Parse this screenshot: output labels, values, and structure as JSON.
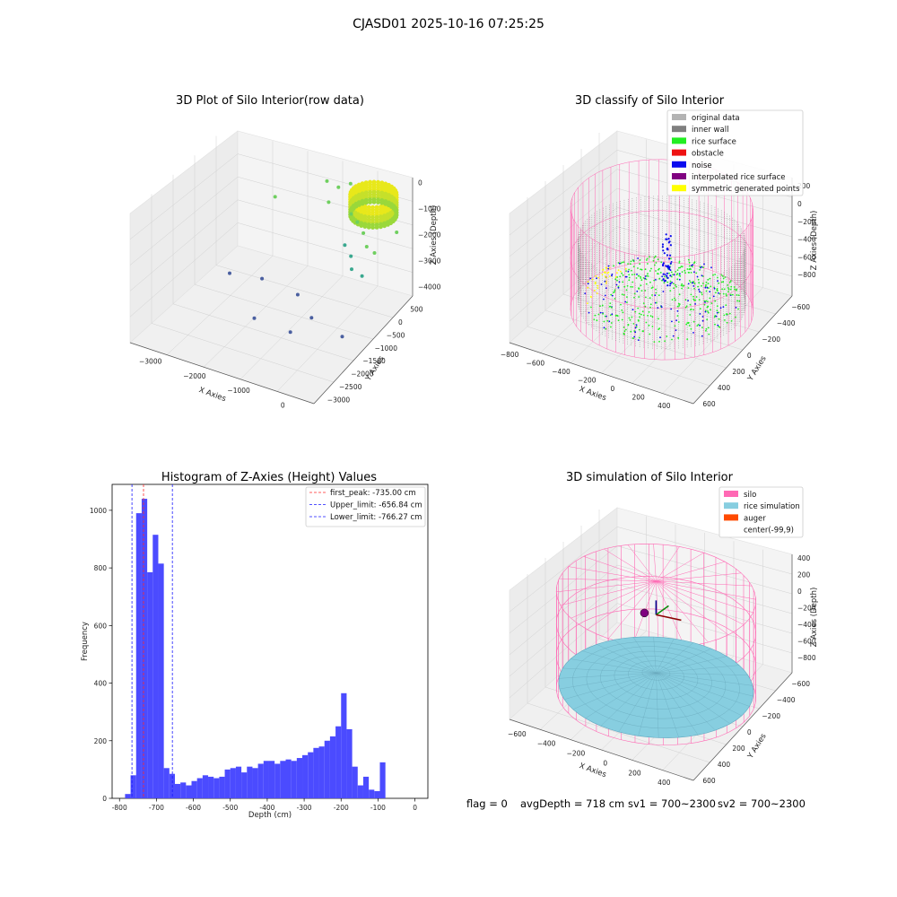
{
  "suptitle": "CJASD01 2025-10-16 07:25:25",
  "status": {
    "flag": "flag = 0",
    "avg": "avgDepth = 718 cm",
    "sv1": "sv1 = 700~2300",
    "sv2": "sv2 = 700~2300"
  },
  "colors": {
    "hist_bar": "#4b4bff",
    "first_peak": "#ff2a2a",
    "limit": "#1a1aff",
    "original": "#b3b3b3",
    "inner_wall": "#7f7f7f",
    "rice_surface": "#22ee22",
    "obstacle": "#ee1111",
    "noise": "#0a0aee",
    "interpolated": "#800080",
    "symmetric": "#ffff00",
    "silo": "#ff69b4",
    "rice_sim": "#87cee0",
    "auger": "#ff4a00"
  },
  "chart_data": [
    {
      "type": "scatter",
      "projection": "3d",
      "title": "3D Plot of Silo Interior(row data)",
      "xlabel": "X Axies",
      "ylabel": "Y Axies",
      "zlabel": "Z Axies (Depth)",
      "xticks": [
        "−3000",
        "−2000",
        "−1000",
        "0"
      ],
      "yticks": [
        "500",
        "0",
        "−500",
        "−1000",
        "−1500",
        "−2000",
        "−2500",
        "−3000"
      ],
      "zticks": [
        "0",
        "−1000",
        "−2000",
        "−3000",
        "−4000"
      ],
      "xlim": [
        -3600,
        600
      ],
      "ylim": [
        -3200,
        800
      ],
      "zlim": [
        -4300,
        200
      ],
      "cluster": {
        "center": [
          -100,
          150
        ],
        "radius": 450,
        "z_top": -200,
        "z_bottom": -900
      },
      "points": [
        {
          "x": -2500,
          "y": 400,
          "z": -1700
        },
        {
          "x": -1500,
          "y": 700,
          "z": -900
        },
        {
          "x": -1400,
          "y": 600,
          "z": -1500
        },
        {
          "x": -1300,
          "y": 800,
          "z": -1100
        },
        {
          "x": -900,
          "y": 600,
          "z": -600
        },
        {
          "x": -700,
          "y": 300,
          "z": -1300
        },
        {
          "x": -500,
          "y": 200,
          "z": -1400
        },
        {
          "x": -300,
          "y": 100,
          "z": -1600
        },
        {
          "x": -400,
          "y": -200,
          "z": -2200
        },
        {
          "x": -100,
          "y": -100,
          "z": -1800
        },
        {
          "x": -600,
          "y": -100,
          "z": -2000
        },
        {
          "x": 200,
          "y": -300,
          "z": -1700
        },
        {
          "x": 100,
          "y": -600,
          "z": -2300
        },
        {
          "x": -200,
          "y": -500,
          "z": -2300
        },
        {
          "x": 400,
          "y": 200,
          "z": -1300
        },
        {
          "x": -2800,
          "y": -800,
          "z": -3500
        },
        {
          "x": -2000,
          "y": -900,
          "z": -3200
        },
        {
          "x": -1500,
          "y": -2000,
          "z": -3400
        },
        {
          "x": -800,
          "y": -1800,
          "z": -3700
        },
        {
          "x": -500,
          "y": -1500,
          "z": -3300
        },
        {
          "x": 200,
          "y": -1500,
          "z": -3600
        },
        {
          "x": -1000,
          "y": -1200,
          "z": -3000
        }
      ]
    },
    {
      "type": "scatter",
      "projection": "3d",
      "title": "3D classify of Silo Interior",
      "xlabel": "X Axies",
      "ylabel": "Y Axies",
      "zlabel": "Z Axies (Depth)",
      "xticks": [
        "−800",
        "−600",
        "−400",
        "−200",
        "0",
        "200",
        "400"
      ],
      "yticks": [
        "600",
        "400",
        "200",
        "0",
        "−200",
        "−400",
        "−600"
      ],
      "zticks": [
        "200",
        "0",
        "−200",
        "−400",
        "−600",
        "−800"
      ],
      "xlim": [
        -850,
        550
      ],
      "ylim": [
        -700,
        700
      ],
      "zlim": [
        -900,
        300
      ],
      "legend": {
        "position": "top-right",
        "entries": [
          {
            "label": "original data",
            "color": "#b3b3b3"
          },
          {
            "label": "inner wall",
            "color": "#7f7f7f"
          },
          {
            "label": "rice surface",
            "color": "#22ee22"
          },
          {
            "label": "obstacle",
            "color": "#ee1111"
          },
          {
            "label": "noise",
            "color": "#0a0aee"
          },
          {
            "label": "interpolated rice surface",
            "color": "#800080"
          },
          {
            "label": "symmetric generated points",
            "color": "#ffff00"
          }
        ]
      },
      "silo": {
        "center": [
          -100,
          0
        ],
        "radius": 600,
        "z_top": 200,
        "z_bottom": -750
      },
      "wall": {
        "radius": 550,
        "z_top": -100,
        "z_bottom": -700
      },
      "rice_surface_depth": -650
    },
    {
      "type": "bar",
      "title": "Histogram of Z-Axies (Height) Values",
      "xlabel": "Depth (cm)",
      "ylabel": "Frequency",
      "xlim": [
        -820,
        35
      ],
      "ylim": [
        0,
        1090
      ],
      "xticks": [
        -800,
        -700,
        -600,
        -500,
        -400,
        -300,
        -200,
        -100,
        0
      ],
      "yticks": [
        0,
        200,
        400,
        600,
        800,
        1000
      ],
      "bin_start": -785,
      "bin_width": 15,
      "values": [
        15,
        80,
        990,
        1040,
        785,
        915,
        815,
        105,
        85,
        50,
        55,
        45,
        60,
        70,
        80,
        75,
        70,
        75,
        100,
        105,
        110,
        90,
        110,
        105,
        120,
        130,
        130,
        120,
        130,
        135,
        130,
        140,
        150,
        160,
        175,
        180,
        200,
        215,
        250,
        365,
        240,
        110,
        45,
        75,
        30,
        25,
        125
      ],
      "lines": [
        {
          "label": "first_peak: -735.00 cm",
          "value": -735.0,
          "style": "dashed",
          "color": "#ff2a2a"
        },
        {
          "label": "Upper_limit: -656.84 cm",
          "value": -656.84,
          "style": "dashed",
          "color": "#1a1aff"
        },
        {
          "label": "Lower_limit: -766.27 cm",
          "value": -766.27,
          "style": "dashed",
          "color": "#1a1aff"
        }
      ],
      "legend": {
        "position": "top-right"
      }
    },
    {
      "type": "scatter",
      "projection": "3d",
      "title": "3D simulation of Silo Interior",
      "xlabel": "X Axies",
      "ylabel": "Y Axies",
      "zlabel": "Z Axies (Depth)",
      "xticks": [
        "−600",
        "−400",
        "−200",
        "0",
        "200",
        "400"
      ],
      "yticks": [
        "600",
        "400",
        "200",
        "0",
        "−200",
        "−400",
        "−600"
      ],
      "zticks": [
        "400",
        "200",
        "0",
        "−200",
        "−400",
        "−600",
        "−800"
      ],
      "xlim": [
        -750,
        550
      ],
      "ylim": [
        -700,
        700
      ],
      "zlim": [
        -900,
        450
      ],
      "legend": {
        "position": "top-right",
        "entries": [
          {
            "label": "silo",
            "color": "#ff69b4"
          },
          {
            "label": "rice simulation",
            "color": "#87cee0"
          },
          {
            "label": "auger",
            "color": "#ff4a00"
          },
          {
            "label": "center(-99,9)",
            "color": ""
          }
        ]
      },
      "silo": {
        "center": [
          -99,
          9
        ],
        "radius": 620,
        "z_top": 200,
        "z_bottom": -820
      },
      "rice_surface_depth": -718
    }
  ]
}
